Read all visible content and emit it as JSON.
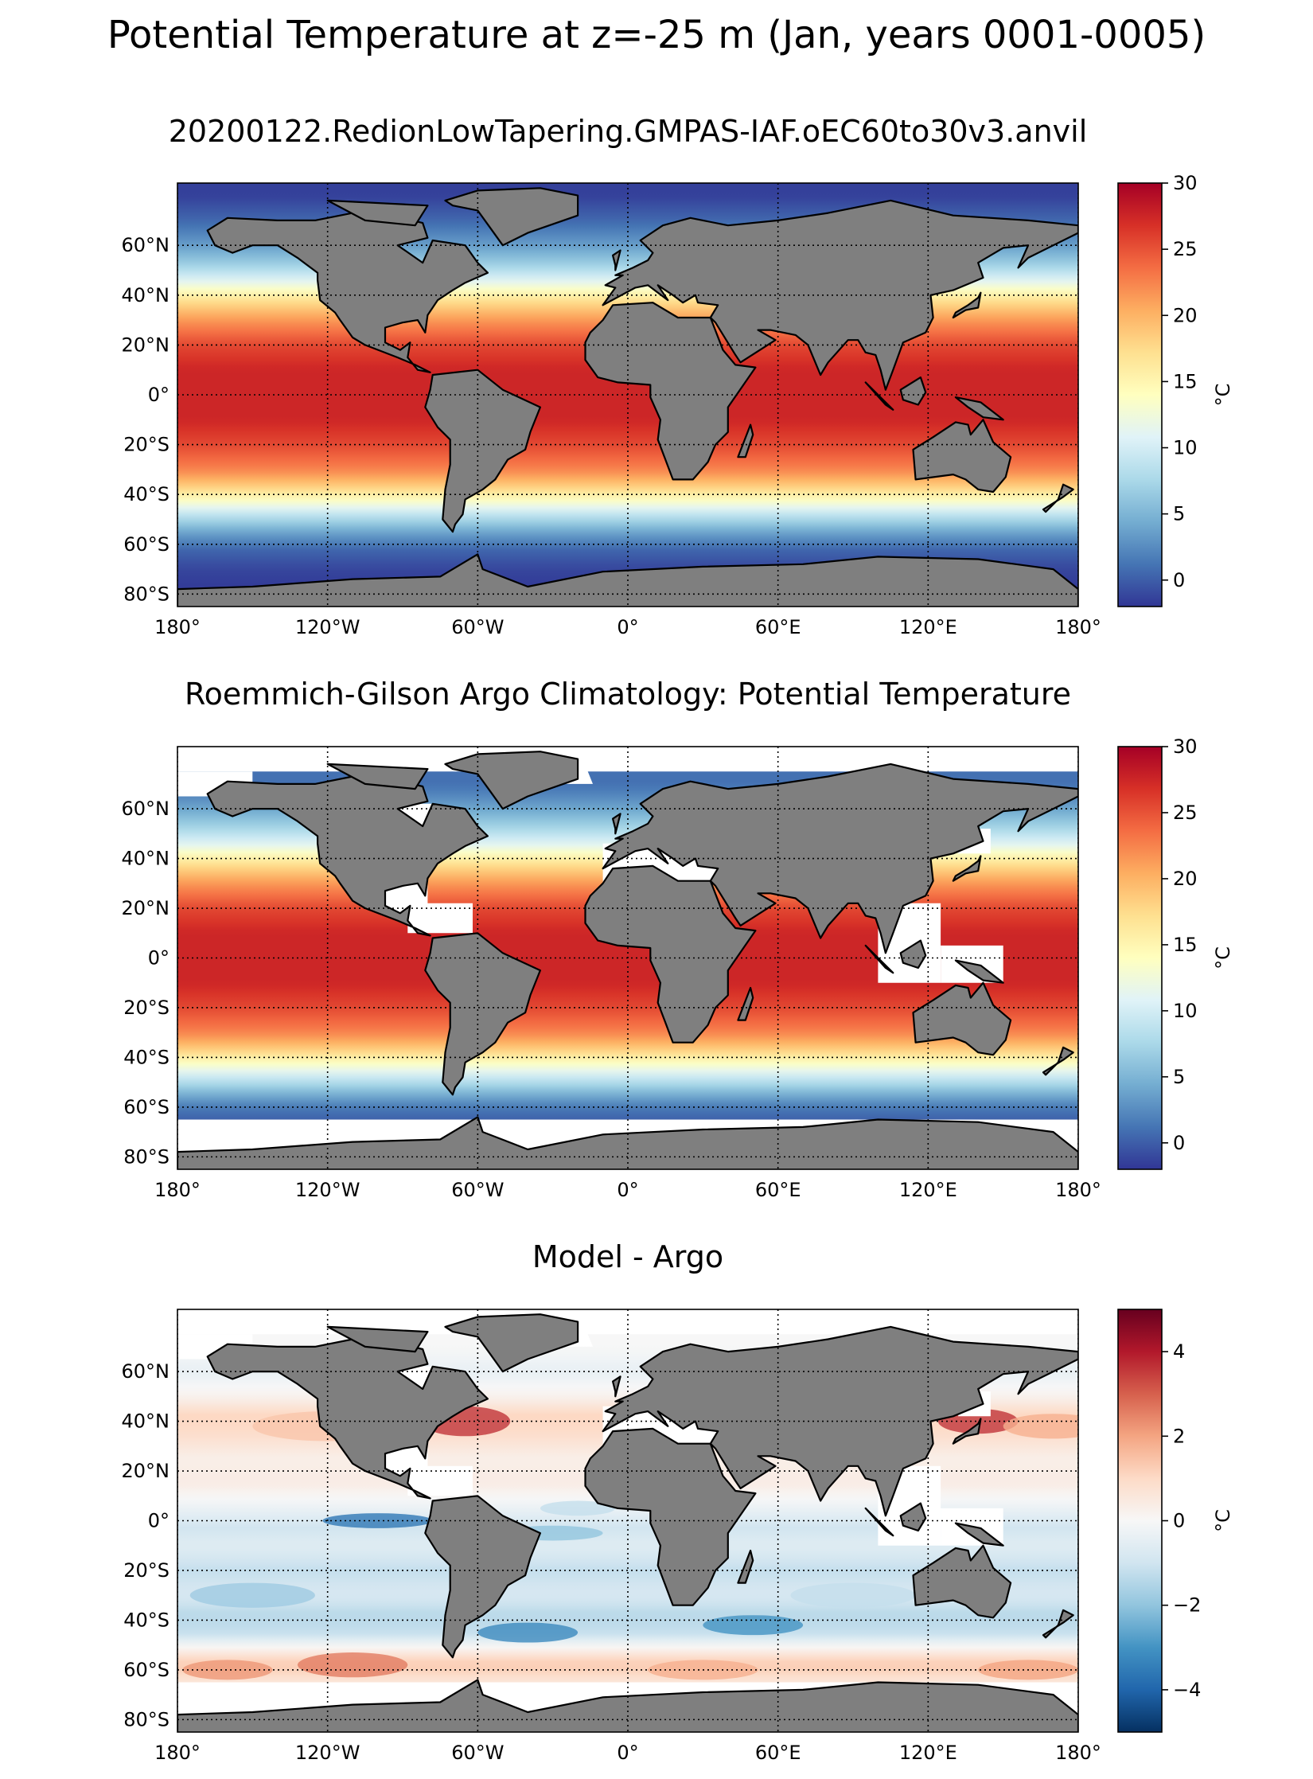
{
  "figure": {
    "title": "Potential Temperature at z=-25 m (Jan, years 0001-0005)"
  },
  "colors": {
    "land": "#7f7f7f",
    "no_data": "#ffffff",
    "rdylbu_r": [
      "#313695",
      "#4575b4",
      "#74add1",
      "#abd9e9",
      "#e0f3f8",
      "#ffffbf",
      "#fee090",
      "#fdae61",
      "#f46d43",
      "#d73027",
      "#a50026"
    ],
    "rdbu_r": [
      "#053061",
      "#2166ac",
      "#4393c3",
      "#92c5de",
      "#d1e5f0",
      "#f7f7f7",
      "#fddbc7",
      "#f4a582",
      "#d6604d",
      "#b2182b",
      "#67001f"
    ]
  },
  "chart_data": [
    {
      "type": "heatmap",
      "title": "20200122.RedionLowTapering.GMPAS-IAF.oEC60to30v3.anvil",
      "projection": "equirectangular",
      "xlim": [
        -180,
        180
      ],
      "ylim": [
        -85,
        85
      ],
      "x_ticks": [
        -180,
        -120,
        -60,
        0,
        60,
        120,
        180
      ],
      "x_tick_labels": [
        "180°",
        "120°W",
        "60°W",
        "0°",
        "60°E",
        "120°E",
        "180°"
      ],
      "y_ticks": [
        -80,
        -60,
        -40,
        -20,
        0,
        20,
        40,
        60
      ],
      "y_tick_labels": [
        "80°S",
        "60°S",
        "40°S",
        "20°S",
        "0°",
        "20°N",
        "40°N",
        "60°N"
      ],
      "grid": true,
      "grid_style": "dotted",
      "colormap": "RdYlBu_r",
      "colorbar": {
        "label": "°C",
        "range": [
          -2,
          30
        ],
        "ticks": [
          0,
          5,
          10,
          15,
          20,
          25,
          30
        ],
        "tick_labels": [
          "0",
          "5",
          "10",
          "15",
          "20",
          "25",
          "30"
        ]
      },
      "field": {
        "kind": "temperature",
        "zonal_profile": [
          [
            -78,
            -1.8
          ],
          [
            -70,
            -1.2
          ],
          [
            -62,
            0.5
          ],
          [
            -55,
            4
          ],
          [
            -48,
            9
          ],
          [
            -42,
            14
          ],
          [
            -36,
            19
          ],
          [
            -30,
            22.5
          ],
          [
            -20,
            25.5
          ],
          [
            -10,
            27.5
          ],
          [
            0,
            27.5
          ],
          [
            10,
            27.5
          ],
          [
            20,
            25.5
          ],
          [
            30,
            21.5
          ],
          [
            38,
            17
          ],
          [
            45,
            11.5
          ],
          [
            52,
            7
          ],
          [
            60,
            3.5
          ],
          [
            70,
            0.5
          ],
          [
            80,
            -1.5
          ]
        ],
        "nodata_below_lat": null
      }
    },
    {
      "type": "heatmap",
      "title": "Roemmich-Gilson Argo Climatology: Potential Temperature",
      "projection": "equirectangular",
      "xlim": [
        -180,
        180
      ],
      "ylim": [
        -85,
        85
      ],
      "x_ticks": [
        -180,
        -120,
        -60,
        0,
        60,
        120,
        180
      ],
      "x_tick_labels": [
        "180°",
        "120°W",
        "60°W",
        "0°",
        "60°E",
        "120°E",
        "180°"
      ],
      "y_ticks": [
        -80,
        -60,
        -40,
        -20,
        0,
        20,
        40,
        60
      ],
      "y_tick_labels": [
        "80°S",
        "60°S",
        "40°S",
        "20°S",
        "0°",
        "20°N",
        "40°N",
        "60°N"
      ],
      "grid": true,
      "grid_style": "dotted",
      "colormap": "RdYlBu_r",
      "colorbar": {
        "label": "°C",
        "range": [
          -2,
          30
        ],
        "ticks": [
          0,
          5,
          10,
          15,
          20,
          25,
          30
        ],
        "tick_labels": [
          "0",
          "5",
          "10",
          "15",
          "20",
          "25",
          "30"
        ]
      },
      "field": {
        "kind": "temperature",
        "zonal_profile": [
          [
            -65,
            0.2
          ],
          [
            -60,
            1.5
          ],
          [
            -55,
            4.5
          ],
          [
            -48,
            9.5
          ],
          [
            -42,
            14
          ],
          [
            -36,
            19
          ],
          [
            -30,
            22.5
          ],
          [
            -20,
            25.5
          ],
          [
            -10,
            27.5
          ],
          [
            0,
            27.5
          ],
          [
            10,
            27.5
          ],
          [
            20,
            25.5
          ],
          [
            30,
            21.5
          ],
          [
            38,
            17
          ],
          [
            45,
            11.5
          ],
          [
            52,
            7.5
          ],
          [
            60,
            4
          ],
          [
            66,
            2
          ],
          [
            70,
            1
          ]
        ],
        "nodata_below_lat": -65
      }
    },
    {
      "type": "heatmap",
      "title": "Model - Argo",
      "projection": "equirectangular",
      "xlim": [
        -180,
        180
      ],
      "ylim": [
        -85,
        85
      ],
      "x_ticks": [
        -180,
        -120,
        -60,
        0,
        60,
        120,
        180
      ],
      "x_tick_labels": [
        "180°",
        "120°W",
        "60°W",
        "0°",
        "60°E",
        "120°E",
        "180°"
      ],
      "y_ticks": [
        -80,
        -60,
        -40,
        -20,
        0,
        20,
        40,
        60
      ],
      "y_tick_labels": [
        "80°S",
        "60°S",
        "40°S",
        "20°S",
        "0°",
        "20°N",
        "40°N",
        "60°N"
      ],
      "grid": true,
      "grid_style": "dotted",
      "colormap": "RdBu_r",
      "colorbar": {
        "label": "°C",
        "range": [
          -5,
          5
        ],
        "ticks": [
          -4,
          -2,
          0,
          2,
          4
        ],
        "tick_labels": [
          "−4",
          "−2",
          "0",
          "2",
          "4"
        ]
      },
      "field": {
        "kind": "difference",
        "zonal_profile": [
          [
            -65,
            0.6
          ],
          [
            -58,
            1.4
          ],
          [
            -52,
            0.3
          ],
          [
            -45,
            -1.2
          ],
          [
            -38,
            -1.4
          ],
          [
            -30,
            -0.8
          ],
          [
            -20,
            -1.2
          ],
          [
            -10,
            -0.6
          ],
          [
            -3,
            -1.0
          ],
          [
            5,
            -0.3
          ],
          [
            15,
            0.4
          ],
          [
            25,
            0.3
          ],
          [
            35,
            0.9
          ],
          [
            42,
            1.1
          ],
          [
            50,
            0.2
          ],
          [
            60,
            -0.4
          ],
          [
            70,
            0.0
          ]
        ],
        "nodata_below_lat": -65
      }
    }
  ]
}
